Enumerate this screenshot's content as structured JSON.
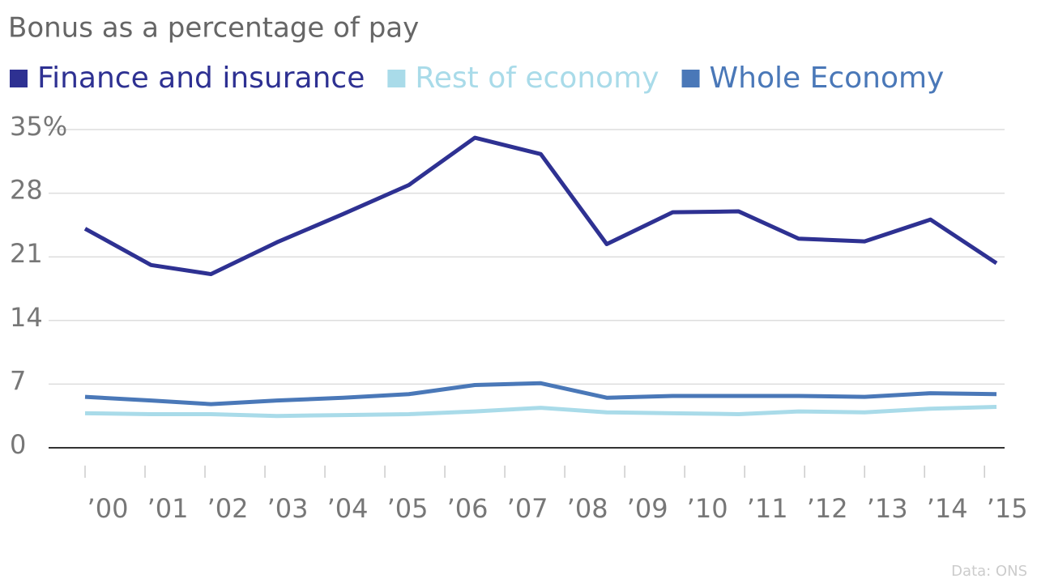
{
  "chart_data": {
    "type": "line",
    "title": "Bonus as a percentage of pay",
    "source": "Data: ONS",
    "x": [
      2000,
      2001.1,
      2002.1,
      2003.2,
      2004.3,
      2005.4,
      2006.5,
      2007.6,
      2008.7,
      2009.8,
      2010.9,
      2011.9,
      2013.0,
      2014.1,
      2015.2
    ],
    "xlim": [
      2000,
      2015.2
    ],
    "xticks": [
      {
        "value": 2000,
        "label": "’00"
      },
      {
        "value": 2001,
        "label": "’01"
      },
      {
        "value": 2002,
        "label": "’02"
      },
      {
        "value": 2003,
        "label": "’03"
      },
      {
        "value": 2004,
        "label": "’04"
      },
      {
        "value": 2005,
        "label": "’05"
      },
      {
        "value": 2006,
        "label": "’06"
      },
      {
        "value": 2007,
        "label": "’07"
      },
      {
        "value": 2008,
        "label": "’08"
      },
      {
        "value": 2009,
        "label": "’09"
      },
      {
        "value": 2010,
        "label": "’10"
      },
      {
        "value": 2011,
        "label": "’11"
      },
      {
        "value": 2012,
        "label": "’12"
      },
      {
        "value": 2013,
        "label": "’13"
      },
      {
        "value": 2014,
        "label": "’14"
      },
      {
        "value": 2015,
        "label": "’15"
      }
    ],
    "ylim": [
      0,
      35
    ],
    "yticks": [
      0,
      7,
      14,
      21,
      28,
      {
        "value": 35,
        "label": "35%"
      }
    ],
    "grid": true,
    "series": [
      {
        "name": "Finance and insurance",
        "color": "#2e3192",
        "values": [
          24.1,
          20.1,
          19.1,
          22.6,
          25.7,
          28.9,
          34.1,
          32.3,
          22.4,
          25.9,
          26.0,
          23.0,
          22.7,
          25.1,
          20.3
        ]
      },
      {
        "name": "Rest of economy",
        "color": "#a9dbe9",
        "values": [
          3.8,
          3.7,
          3.7,
          3.5,
          3.6,
          3.7,
          4.0,
          4.4,
          3.9,
          3.8,
          3.7,
          4.0,
          3.9,
          4.3,
          4.5
        ]
      },
      {
        "name": "Whole Economy",
        "color": "#4a78b8",
        "values": [
          5.6,
          5.2,
          4.8,
          5.2,
          5.5,
          5.9,
          6.9,
          7.1,
          5.5,
          5.7,
          5.7,
          5.7,
          5.6,
          6.0,
          5.9
        ]
      }
    ]
  }
}
